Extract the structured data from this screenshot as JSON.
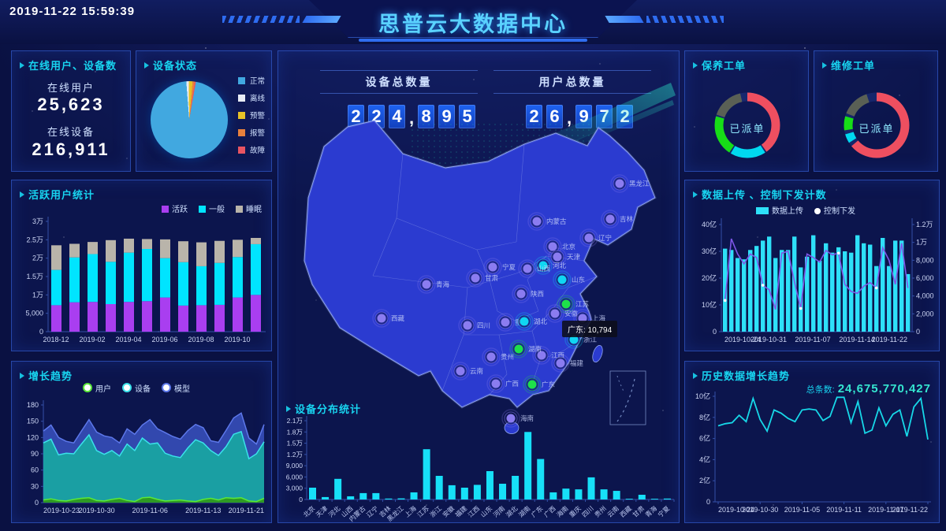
{
  "header": {
    "timestamp": "2019-11-22 15:59:39",
    "title": "思普云大数据中心"
  },
  "panels": {
    "online": {
      "title": "在线用户、设备数",
      "items": [
        {
          "label": "在线用户",
          "value": "25,623"
        },
        {
          "label": "在线设备",
          "value": "216,911"
        }
      ]
    },
    "totals": {
      "device_label": "设备总数量",
      "device_value": "224,895",
      "user_label": "用户总数量",
      "user_value": "26,972"
    }
  },
  "map": {
    "tooltip": "广东: 10,794",
    "marker_colors": {
      "purple": "#8b7cf0",
      "cyan": "#10d6f2",
      "green": "#1ee04a"
    },
    "markers": [
      [
        "黑龙江",
        433,
        168,
        "purple"
      ],
      [
        "吉林",
        421,
        213,
        "purple"
      ],
      [
        "辽宁",
        394,
        237,
        "purple"
      ],
      [
        "内蒙古",
        328,
        216,
        "purple"
      ],
      [
        "北京",
        348,
        248,
        "purple"
      ],
      [
        "天津",
        354,
        261,
        "purple"
      ],
      [
        "河北",
        336,
        272,
        "cyan"
      ],
      [
        "山西",
        316,
        276,
        "purple"
      ],
      [
        "宁夏",
        272,
        274,
        "purple"
      ],
      [
        "陕西",
        308,
        308,
        "purple"
      ],
      [
        "甘肃",
        250,
        288,
        "purple"
      ],
      [
        "青海",
        188,
        296,
        "purple"
      ],
      [
        "西藏",
        131,
        339,
        "purple"
      ],
      [
        "四川",
        240,
        348,
        "purple"
      ],
      [
        "重庆",
        288,
        344,
        "purple"
      ],
      [
        "山东",
        360,
        290,
        "cyan"
      ],
      [
        "江苏",
        365,
        321,
        "green"
      ],
      [
        "安徽",
        351,
        333,
        "purple"
      ],
      [
        "上海",
        386,
        339,
        "purple"
      ],
      [
        "浙江",
        375,
        366,
        "cyan"
      ],
      [
        "湖北",
        312,
        343,
        "cyan"
      ],
      [
        "江西",
        334,
        386,
        "purple"
      ],
      [
        "福建",
        358,
        396,
        "purple"
      ],
      [
        "湖南",
        305,
        378,
        "green"
      ],
      [
        "贵州",
        270,
        388,
        "purple"
      ],
      [
        "云南",
        231,
        406,
        "purple"
      ],
      [
        "广西",
        276,
        422,
        "purple"
      ],
      [
        "广东",
        322,
        423,
        "green"
      ],
      [
        "海南",
        295,
        466,
        "purple"
      ]
    ]
  },
  "chart_data": [
    {
      "id": "device-status",
      "type": "pie",
      "title": "设备状态",
      "legend_position": "right",
      "slices": [
        {
          "label": "正常",
          "pct": 96.0,
          "color": "#41a8e0"
        },
        {
          "label": "离线",
          "pct": 1.0,
          "color": "#e8ecf5"
        },
        {
          "label": "预警",
          "pct": 1.6,
          "color": "#e6c227"
        },
        {
          "label": "报警",
          "pct": 0.9,
          "color": "#e8813d"
        },
        {
          "label": "故障",
          "pct": 0.5,
          "color": "#e85462"
        }
      ]
    },
    {
      "id": "active-users",
      "type": "bar",
      "stacked": true,
      "title": "活跃用户统计",
      "categories": [
        "2018-12",
        "2019-01",
        "2019-02",
        "2019-03",
        "2019-04",
        "2019-05",
        "2019-06",
        "2019-07",
        "2019-08",
        "2019-09",
        "2019-10",
        "2019-11"
      ],
      "x_ticks_shown": [
        "2018-12",
        "2019-02",
        "2019-04",
        "2019-06",
        "2019-08",
        "2019-10"
      ],
      "series": [
        {
          "name": "活跃",
          "color": "#a93ef0",
          "values": [
            7200,
            8000,
            8100,
            7500,
            8100,
            8300,
            9300,
            7100,
            7200,
            7300,
            9300,
            10000
          ]
        },
        {
          "name": "一般",
          "color": "#00e4ff",
          "values": [
            9600,
            12200,
            13000,
            11500,
            13400,
            14200,
            10700,
            11800,
            10600,
            11400,
            11000,
            13800
          ]
        },
        {
          "name": "睡眠",
          "color": "#b9b4aa",
          "values": [
            6700,
            3700,
            3300,
            5900,
            3800,
            2700,
            5100,
            5700,
            6500,
            6000,
            4700,
            1700
          ]
        }
      ],
      "ylim": [
        0,
        30000
      ],
      "y_ticks": [
        "0",
        "5,000",
        "1万",
        "1.5万",
        "2万",
        "2.5万",
        "3万"
      ]
    },
    {
      "id": "growth",
      "type": "area",
      "stacked": true,
      "title": "增长趋势",
      "x_ticks_shown": [
        "2019-10-23",
        "2019-10-30",
        "2019-11-06",
        "2019-11-13",
        "2019-11-21"
      ],
      "series": [
        {
          "name": "用户",
          "color": "#2f9a1e",
          "line": "#5ae838",
          "values": [
            5,
            7,
            4,
            3,
            6,
            8,
            9,
            4,
            3,
            6,
            8,
            4,
            2,
            9,
            10,
            6,
            3,
            4,
            5,
            3,
            2,
            6,
            8,
            5,
            9,
            8,
            9,
            3,
            2,
            8
          ]
        },
        {
          "name": "设备",
          "color": "#17a8a2",
          "line": "#3ae2ea",
          "values": [
            105,
            110,
            84,
            88,
            84,
            100,
            116,
            92,
            86,
            90,
            78,
            104,
            94,
            110,
            98,
            104,
            88,
            82,
            78,
            98,
            114,
            104,
            88,
            82,
            94,
            118,
            122,
            78,
            88,
            104
          ]
        },
        {
          "name": "模型",
          "color": "#3a51c0",
          "line": "#5d78ea",
          "values": [
            22,
            26,
            32,
            22,
            20,
            24,
            28,
            34,
            34,
            24,
            24,
            28,
            30,
            24,
            45,
            26,
            38,
            36,
            34,
            32,
            28,
            28,
            18,
            24,
            30,
            30,
            34,
            38,
            18,
            32
          ]
        }
      ],
      "ylim": [
        0,
        180
      ],
      "y_ticks": [
        "0",
        "30",
        "60",
        "90",
        "120",
        "150",
        "180"
      ]
    },
    {
      "id": "distribution",
      "type": "bar",
      "title": "设备分布统计",
      "categories": [
        "北京",
        "天津",
        "河北",
        "山西",
        "内蒙古",
        "辽宁",
        "吉林",
        "黑龙江",
        "上海",
        "江苏",
        "浙江",
        "安徽",
        "福建",
        "江西",
        "山东",
        "河南",
        "湖北",
        "湖南",
        "广东",
        "广西",
        "海南",
        "重庆",
        "四川",
        "贵州",
        "云南",
        "西藏",
        "甘肃",
        "青海",
        "宁夏"
      ],
      "values": [
        3150,
        650,
        5500,
        850,
        1700,
        1700,
        250,
        300,
        1900,
        13400,
        6300,
        3800,
        3150,
        3900,
        7560,
        4200,
        6300,
        18000,
        10794,
        1900,
        2900,
        2700,
        5900,
        2700,
        2300,
        200,
        1260,
        200,
        250
      ],
      "bar_color": "#17e0f8",
      "ylim": [
        0,
        21000
      ],
      "y_ticks": [
        "0",
        "3,000",
        "6,000",
        "9,000",
        "1.2万",
        "1.5万",
        "1.8万",
        "2.1万"
      ]
    },
    {
      "id": "maintenance",
      "type": "donut",
      "title": "保养工单",
      "center_label": "已派单",
      "segments": [
        {
          "color": "#ee4f60",
          "from": 0,
          "to": 40
        },
        {
          "color": "#00d8f0",
          "from": 40.8,
          "to": 58.5
        },
        {
          "color": "#17dd17",
          "from": 59.3,
          "to": 79.5
        },
        {
          "color": "#5a6055",
          "from": 80.3,
          "to": 96.5
        }
      ]
    },
    {
      "id": "repair",
      "type": "donut",
      "title": "维修工单",
      "center_label": "已派单",
      "segments": [
        {
          "color": "#ee4f60",
          "from": 0,
          "to": 64
        },
        {
          "color": "#00d8f0",
          "from": 66,
          "to": 70.5
        },
        {
          "color": "#17dd17",
          "from": 72.5,
          "to": 79.5
        },
        {
          "color": "#5a6055",
          "from": 81,
          "to": 95
        }
      ]
    },
    {
      "id": "upload",
      "type": "combo",
      "title": "数据上传 、控制下发计数",
      "x_ticks_shown": [
        "2019-10-24",
        "2019-10-31",
        "2019-11-07",
        "2019-11-14",
        "2019-11-22"
      ],
      "bar_series": {
        "name": "数据上传",
        "color": "#2ee0f8",
        "values": [
          31,
          30.5,
          27.5,
          27,
          30.5,
          32,
          34,
          35.5,
          27.5,
          30.5,
          30.5,
          35.5,
          24,
          28,
          36,
          26.5,
          33,
          29.5,
          31.5,
          30,
          29.5,
          36,
          33,
          32.5,
          24.5,
          35,
          24.5,
          34,
          34,
          21.5
        ]
      },
      "line_series": {
        "name": "控制下发",
        "color": "#7e57e8",
        "marker": "#ffffff",
        "values": [
          3500,
          10400,
          8700,
          7600,
          8700,
          8300,
          5200,
          4700,
          2500,
          8800,
          9000,
          5600,
          2600,
          8700,
          8300,
          7800,
          9100,
          8600,
          8800,
          5300,
          4500,
          4300,
          5100,
          5500,
          4900,
          9400,
          8000,
          5300,
          9900,
          4900
        ]
      },
      "left_ylim": [
        0,
        40
      ],
      "left_y_ticks": [
        "0",
        "10亿",
        "20亿",
        "30亿",
        "40亿"
      ],
      "right_ylim": [
        0,
        12000
      ],
      "right_y_ticks": [
        "0",
        "2,000",
        "4,000",
        "6,000",
        "8,000",
        "1万",
        "1.2万"
      ]
    },
    {
      "id": "history",
      "type": "line",
      "title": "历史数据增长趋势",
      "total_label": "总条数:",
      "total_value": "24,675,770,427",
      "color": "#17d8e8",
      "x_ticks_shown": [
        "2019-10-24",
        "2019-10-30",
        "2019-11-05",
        "2019-11-11",
        "2019-11-17",
        "2019-11-22"
      ],
      "values": [
        7.2,
        7.4,
        7.5,
        8.2,
        7.6,
        9.8,
        7.8,
        6.7,
        8.7,
        8.4,
        7.9,
        7.6,
        8.7,
        8.8,
        8.7,
        7.7,
        8.1,
        9.9,
        9.9,
        7.5,
        9.5,
        6.5,
        6.8,
        8.9,
        7.2,
        8.3,
        8.7,
        6.2,
        9.0,
        9.8,
        5.9
      ],
      "ylim": [
        0,
        10
      ],
      "y_ticks": [
        "0",
        "2亿",
        "4亿",
        "6亿",
        "8亿",
        "10亿"
      ]
    }
  ]
}
